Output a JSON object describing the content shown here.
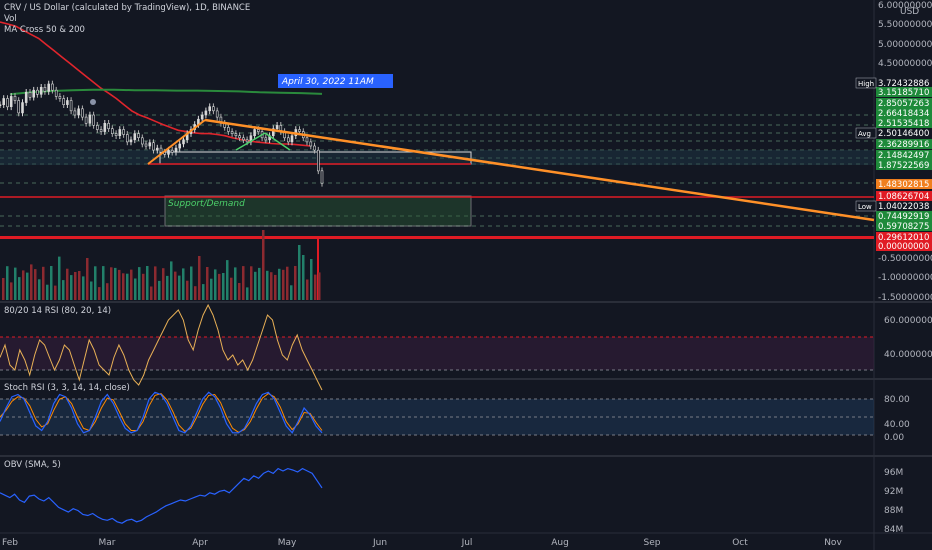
{
  "header": {
    "title": "CRV / US Dollar (calculated by TradingView), 1D, BINANCE",
    "vol": "Vol",
    "ma": "MA Cross 50 & 200"
  },
  "annotations": {
    "date_box": "April 30, 2022 11AM",
    "zone_label": "Support/Demand",
    "high_tag": "High",
    "avg_tag": "Avg",
    "low_tag": "Low"
  },
  "panes": {
    "rsi_title": "80/20 14 RSI (80, 20, 14)",
    "stoch_title": "Stoch RSI (3, 3, 14, 14, close)",
    "obv_title": "OBV (SMA, 5)"
  },
  "colors": {
    "background": "#131722",
    "price_line": "#d8d8d8",
    "ma50": "#e0252c",
    "ma200": "#2a8a3c",
    "trendline": "#ff9028",
    "rsi": "#e8b056",
    "stoch_k": "#2962ff",
    "stoch_d": "#ff8a00",
    "obv": "#2962ff",
    "green_tag": "#1e8a3a",
    "red_tag": "#e01b24",
    "orange_tag": "#f07f1e"
  },
  "chart_data": [
    {
      "type": "line",
      "title": "CRV / US Dollar (calculated by TradingView), 1D, BINANCE",
      "x_ticks": [
        "Feb",
        "Mar",
        "Apr",
        "May",
        "Jun",
        "Jul",
        "Aug",
        "Sep",
        "Oct",
        "Nov"
      ],
      "y_ticks": [
        "6.00000000",
        "5.50000000",
        "5.00000000",
        "4.50000000",
        "-0.50000000",
        "-1.00000000",
        "-1.50000000"
      ],
      "ylim": [
        -1.6,
        6.0
      ],
      "price_tags": [
        {
          "label": "3.72432886",
          "color": "#131722",
          "tag": "High"
        },
        {
          "label": "3.15185710",
          "color": "#1e8a3a"
        },
        {
          "label": "2.85057263",
          "color": "#1e8a3a"
        },
        {
          "label": "2.66418434",
          "color": "#1e8a3a"
        },
        {
          "label": "2.51535418",
          "color": "#1e8a3a"
        },
        {
          "label": "2.50146400",
          "color": "#131722",
          "tag": "Avg"
        },
        {
          "label": "2.36289916",
          "color": "#1e8a3a"
        },
        {
          "label": "2.14842497",
          "color": "#1e8a3a"
        },
        {
          "label": "1.87522569",
          "color": "#1e8a3a"
        },
        {
          "label": "1.48302815",
          "color": "#f07f1e"
        },
        {
          "label": "1.08626704",
          "color": "#e01b24"
        },
        {
          "label": "1.04022038",
          "color": "#131722",
          "tag": "Low"
        },
        {
          "label": "0.74492919",
          "color": "#1e8a3a"
        },
        {
          "label": "0.59708275",
          "color": "#1e8a3a"
        },
        {
          "label": "0.29612010",
          "color": "#e01b24"
        },
        {
          "label": "0.00000000",
          "color": "#e01b24"
        }
      ],
      "series": [
        {
          "values": [
            3.2,
            3.35,
            3.15,
            3.4,
            3.3,
            3.0,
            3.25,
            3.5,
            3.38,
            3.55,
            3.45,
            3.62,
            3.52,
            3.7,
            3.55,
            3.4,
            3.35,
            3.2,
            3.3,
            3.05,
            2.95,
            3.1,
            2.9,
            2.75,
            2.95,
            2.7,
            2.6,
            2.55,
            2.75,
            2.62,
            2.5,
            2.45,
            2.6,
            2.48,
            2.3,
            2.35,
            2.5,
            2.4,
            2.25,
            2.2,
            2.28,
            2.1,
            2.15,
            2.05,
            2.0,
            2.1,
            2.05,
            2.15,
            2.25,
            2.35,
            2.5,
            2.6,
            2.72,
            2.85,
            2.95,
            3.05,
            3.15,
            3.05,
            2.9,
            2.75,
            2.65,
            2.55,
            2.5,
            2.45,
            2.4,
            2.35,
            2.3,
            2.45,
            2.6,
            2.55,
            2.4,
            2.35,
            2.45,
            2.62,
            2.7,
            2.55,
            2.4,
            2.3,
            2.45,
            2.6,
            2.55,
            2.4,
            2.3,
            2.2,
            2.1,
            1.6,
            1.3
          ]
        },
        {
          "name": "MA 50",
          "values": [
            5.2,
            5.15,
            5.1,
            5.0,
            4.9,
            4.8,
            4.65,
            4.5,
            4.35,
            4.2,
            4.05,
            3.9,
            3.75,
            3.6,
            3.48,
            3.35,
            3.2,
            3.05,
            2.95,
            2.88,
            2.8,
            2.72,
            2.65,
            2.58,
            2.55,
            2.52,
            2.5,
            2.5,
            2.48,
            2.45,
            2.4,
            2.36,
            2.33,
            2.3,
            2.28,
            2.26,
            2.25,
            2.25,
            2.24,
            2.22,
            2.2
          ]
        },
        {
          "name": "MA 200",
          "values": [
            3.45,
            3.5,
            3.53,
            3.55,
            3.56,
            3.56,
            3.55,
            3.55,
            3.54,
            3.54,
            3.53,
            3.52,
            3.5,
            3.49,
            3.48,
            3.46
          ]
        }
      ]
    },
    {
      "type": "line",
      "title": "80/20 14 RSI (80, 20, 14)",
      "y_ticks": [
        "60.00000000",
        "40.00000000"
      ],
      "ylim": [
        28,
        70
      ],
      "series": [
        {
          "values": [
            45,
            50,
            42,
            40,
            48,
            44,
            38,
            46,
            52,
            50,
            45,
            40,
            44,
            50,
            48,
            42,
            36,
            44,
            52,
            48,
            42,
            40,
            38,
            45,
            50,
            46,
            40,
            36,
            34,
            38,
            44,
            48,
            52,
            56,
            60,
            62,
            64,
            60,
            52,
            48,
            56,
            62,
            66,
            62,
            56,
            48,
            44,
            46,
            42,
            44,
            40,
            44,
            50,
            56,
            62,
            60,
            52,
            46,
            44,
            50,
            54,
            48,
            44,
            40,
            36,
            32
          ]
        }
      ]
    },
    {
      "type": "line",
      "title": "Stoch RSI (3, 3, 14, 14, close)",
      "y_ticks": [
        "80.00",
        "40.00",
        "0.00"
      ],
      "ylim": [
        -5,
        100
      ],
      "series": [
        {
          "name": "K",
          "values": [
            30,
            60,
            85,
            90,
            80,
            50,
            20,
            10,
            30,
            70,
            90,
            85,
            60,
            25,
            5,
            10,
            40,
            75,
            90,
            70,
            40,
            15,
            5,
            10,
            40,
            80,
            95,
            90,
            70,
            40,
            10,
            5,
            20,
            50,
            80,
            95,
            85,
            60,
            25,
            5,
            5,
            15,
            40,
            70,
            90,
            95,
            80,
            50,
            20,
            5,
            30,
            60,
            45,
            20,
            5
          ]
        },
        {
          "name": "D",
          "values": [
            40,
            55,
            75,
            85,
            82,
            65,
            35,
            18,
            25,
            55,
            80,
            85,
            70,
            40,
            15,
            10,
            30,
            60,
            82,
            78,
            52,
            25,
            10,
            10,
            30,
            65,
            88,
            92,
            78,
            52,
            22,
            8,
            15,
            40,
            68,
            88,
            90,
            72,
            40,
            15,
            6,
            12,
            30,
            58,
            82,
            92,
            85,
            62,
            30,
            12,
            25,
            50,
            48,
            28,
            10
          ]
        }
      ]
    },
    {
      "type": "line",
      "title": "OBV (SMA, 5)",
      "y_ticks": [
        "96M",
        "92M",
        "88M",
        "84M"
      ],
      "ylim": [
        83,
        98
      ],
      "series": [
        {
          "values": [
            91.5,
            91,
            90.5,
            91.2,
            90,
            89.5,
            90.8,
            91,
            90.2,
            89.8,
            90.5,
            89.5,
            88.5,
            88,
            87.5,
            88.2,
            87.8,
            87,
            86.8,
            87.2,
            86.5,
            86,
            85.8,
            86.2,
            85.5,
            85.2,
            85.8,
            86,
            85.5,
            85.8,
            86.5,
            87,
            87.5,
            88.2,
            88.8,
            89.2,
            89.6,
            90,
            89.8,
            90.2,
            90.6,
            91,
            90.8,
            91.5,
            91.2,
            91.8,
            92,
            91.5,
            92.5,
            93.5,
            94.5,
            94,
            95,
            94.5,
            95.5,
            96,
            95.5,
            96.5,
            96,
            96.5,
            96.2,
            95.8,
            96.5,
            96,
            95.5,
            94,
            92.5
          ]
        }
      ]
    }
  ]
}
